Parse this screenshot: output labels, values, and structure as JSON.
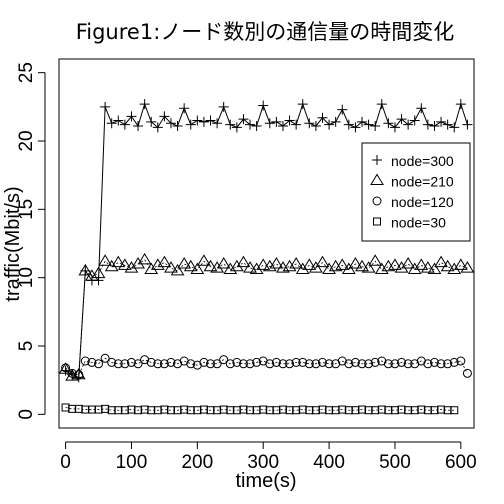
{
  "chart_data": {
    "type": "scatter",
    "title": "Figure1:ノード数別の通信量の時間変化",
    "xlabel": "time(s)",
    "ylabel": "traffic(Mbit/s)",
    "xlim": [
      -10,
      620
    ],
    "ylim": [
      -1,
      26
    ],
    "xticks": [
      0,
      100,
      200,
      300,
      400,
      500,
      600
    ],
    "yticks": [
      0,
      5,
      10,
      15,
      20,
      25
    ],
    "grid": false,
    "legend_position": "top-right",
    "series": [
      {
        "name": "node=300",
        "marker": "plus",
        "x": [
          0,
          10,
          20,
          30,
          40,
          50,
          60,
          70,
          80,
          90,
          100,
          110,
          120,
          130,
          140,
          150,
          160,
          170,
          180,
          190,
          200,
          210,
          220,
          230,
          240,
          250,
          260,
          270,
          280,
          290,
          300,
          310,
          320,
          330,
          340,
          350,
          360,
          370,
          380,
          390,
          400,
          410,
          420,
          430,
          440,
          450,
          460,
          470,
          480,
          490,
          500,
          510,
          520,
          530,
          540,
          550,
          560,
          570,
          580,
          590,
          600,
          610
        ],
        "y": [
          3.2,
          2.9,
          2.7,
          10.5,
          9.8,
          9.8,
          22.5,
          21.3,
          21.5,
          21.2,
          21.8,
          21.1,
          22.7,
          21.4,
          21.0,
          21.8,
          21.3,
          21.1,
          22.4,
          21.2,
          21.5,
          21.4,
          21.5,
          21.3,
          22.5,
          21.2,
          21.0,
          21.6,
          21.2,
          21.1,
          22.6,
          21.3,
          21.4,
          21.1,
          21.5,
          21.2,
          22.7,
          21.3,
          21.1,
          21.7,
          21.2,
          21.4,
          22.3,
          21.2,
          21.0,
          21.4,
          21.2,
          21.1,
          22.7,
          21.3,
          21.0,
          21.6,
          21.2,
          21.5,
          22.4,
          21.2,
          21.1,
          21.4,
          21.2,
          21.0,
          22.7,
          21.2
        ]
      },
      {
        "name": "node=210",
        "marker": "triangle",
        "x": [
          0,
          10,
          20,
          30,
          40,
          50,
          60,
          70,
          80,
          90,
          100,
          110,
          120,
          130,
          140,
          150,
          160,
          170,
          180,
          190,
          200,
          210,
          220,
          230,
          240,
          250,
          260,
          270,
          280,
          290,
          300,
          310,
          320,
          330,
          340,
          350,
          360,
          370,
          380,
          390,
          400,
          410,
          420,
          430,
          440,
          450,
          460,
          470,
          480,
          490,
          500,
          510,
          520,
          530,
          540,
          550,
          560,
          570,
          580,
          590,
          600,
          610
        ],
        "y": [
          3.3,
          2.8,
          2.9,
          10.5,
          10.1,
          10.3,
          11.2,
          10.8,
          11.1,
          10.9,
          10.7,
          11.0,
          11.3,
          10.6,
          10.9,
          11.1,
          10.7,
          10.5,
          11.0,
          10.8,
          10.6,
          11.2,
          10.8,
          10.7,
          11.0,
          10.6,
          10.8,
          11.1,
          10.7,
          10.6,
          10.9,
          10.8,
          11.0,
          10.7,
          10.8,
          11.0,
          10.6,
          10.9,
          10.7,
          11.1,
          10.6,
          10.8,
          10.9,
          10.6,
          11.0,
          10.8,
          10.7,
          11.2,
          10.6,
          10.8,
          10.9,
          10.7,
          11.0,
          10.6,
          10.9,
          10.7,
          10.6,
          11.1,
          10.8,
          10.6,
          10.9,
          10.7
        ]
      },
      {
        "name": "node=120",
        "marker": "circle",
        "x": [
          0,
          10,
          20,
          30,
          40,
          50,
          60,
          70,
          80,
          90,
          100,
          110,
          120,
          130,
          140,
          150,
          160,
          170,
          180,
          190,
          200,
          210,
          220,
          230,
          240,
          250,
          260,
          270,
          280,
          290,
          300,
          310,
          320,
          330,
          340,
          350,
          360,
          370,
          380,
          390,
          400,
          410,
          420,
          430,
          440,
          450,
          460,
          470,
          480,
          490,
          500,
          510,
          520,
          530,
          540,
          550,
          560,
          570,
          580,
          590,
          600,
          610
        ],
        "y": [
          3.4,
          3.0,
          2.9,
          3.9,
          3.8,
          3.7,
          4.1,
          3.8,
          3.7,
          3.7,
          3.8,
          3.7,
          4.0,
          3.8,
          3.7,
          3.7,
          3.8,
          3.7,
          3.9,
          3.7,
          3.6,
          3.8,
          3.7,
          3.7,
          4.0,
          3.7,
          3.8,
          3.7,
          3.7,
          3.8,
          3.9,
          3.7,
          3.8,
          3.7,
          3.7,
          3.8,
          3.8,
          3.7,
          3.7,
          3.8,
          3.7,
          3.7,
          3.9,
          3.7,
          3.8,
          3.7,
          3.7,
          3.8,
          3.9,
          3.7,
          3.7,
          3.8,
          3.7,
          3.7,
          3.9,
          3.7,
          3.8,
          3.7,
          3.7,
          3.8,
          3.9,
          3.0
        ]
      },
      {
        "name": "node=30",
        "marker": "square",
        "x": [
          0,
          10,
          20,
          30,
          40,
          50,
          60,
          70,
          80,
          90,
          100,
          110,
          120,
          130,
          140,
          150,
          160,
          170,
          180,
          190,
          200,
          210,
          220,
          230,
          240,
          250,
          260,
          270,
          280,
          290,
          300,
          310,
          320,
          330,
          340,
          350,
          360,
          370,
          380,
          390,
          400,
          410,
          420,
          430,
          440,
          450,
          460,
          470,
          480,
          490,
          500,
          510,
          520,
          530,
          540,
          550,
          560,
          570,
          580,
          590
        ],
        "y": [
          0.5,
          0.4,
          0.4,
          0.35,
          0.35,
          0.35,
          0.4,
          0.3,
          0.3,
          0.3,
          0.35,
          0.3,
          0.35,
          0.3,
          0.3,
          0.35,
          0.3,
          0.3,
          0.35,
          0.3,
          0.3,
          0.35,
          0.3,
          0.3,
          0.35,
          0.3,
          0.3,
          0.35,
          0.3,
          0.3,
          0.35,
          0.3,
          0.3,
          0.35,
          0.3,
          0.3,
          0.35,
          0.3,
          0.3,
          0.35,
          0.3,
          0.3,
          0.35,
          0.3,
          0.3,
          0.35,
          0.3,
          0.3,
          0.35,
          0.3,
          0.3,
          0.35,
          0.3,
          0.3,
          0.35,
          0.3,
          0.3,
          0.35,
          0.3,
          0.3
        ]
      }
    ]
  }
}
